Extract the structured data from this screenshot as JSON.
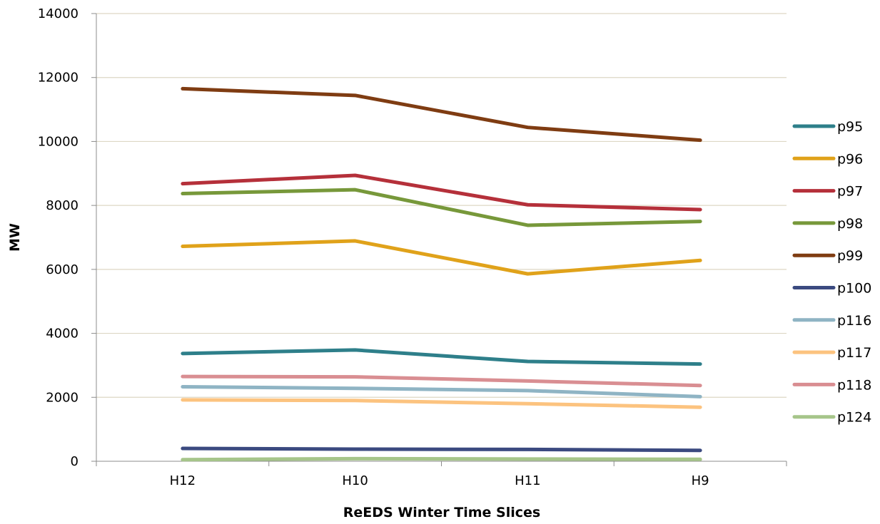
{
  "chart_data": {
    "type": "line",
    "title": "",
    "xlabel": "ReEDS Winter Time Slices",
    "ylabel": "MW",
    "categories": [
      "H12",
      "H10",
      "H11",
      "H9"
    ],
    "ylim": [
      0,
      14000
    ],
    "yticks": [
      0,
      2000,
      4000,
      6000,
      8000,
      10000,
      12000,
      14000
    ],
    "grid": true,
    "legend_position": "right",
    "series": [
      {
        "name": "p95",
        "color": "#2e7f8a",
        "values": [
          3370,
          3480,
          3120,
          3040
        ]
      },
      {
        "name": "p96",
        "color": "#e0a21a",
        "values": [
          6720,
          6890,
          5860,
          6280
        ]
      },
      {
        "name": "p97",
        "color": "#b5303a",
        "values": [
          8680,
          8940,
          8020,
          7870
        ]
      },
      {
        "name": "p98",
        "color": "#77983a",
        "values": [
          8370,
          8490,
          7380,
          7500
        ]
      },
      {
        "name": "p99",
        "color": "#7f3c12",
        "values": [
          11650,
          11440,
          10440,
          10040
        ]
      },
      {
        "name": "p100",
        "color": "#3b4a80",
        "values": [
          400,
          380,
          370,
          340
        ]
      },
      {
        "name": "p116",
        "color": "#8fb4c4",
        "values": [
          2330,
          2280,
          2210,
          2020
        ]
      },
      {
        "name": "p117",
        "color": "#fcc37f",
        "values": [
          1920,
          1900,
          1800,
          1690
        ]
      },
      {
        "name": "p118",
        "color": "#d98e92",
        "values": [
          2650,
          2640,
          2510,
          2370
        ]
      },
      {
        "name": "p124",
        "color": "#a6c58a",
        "values": [
          50,
          80,
          70,
          60
        ]
      }
    ]
  }
}
